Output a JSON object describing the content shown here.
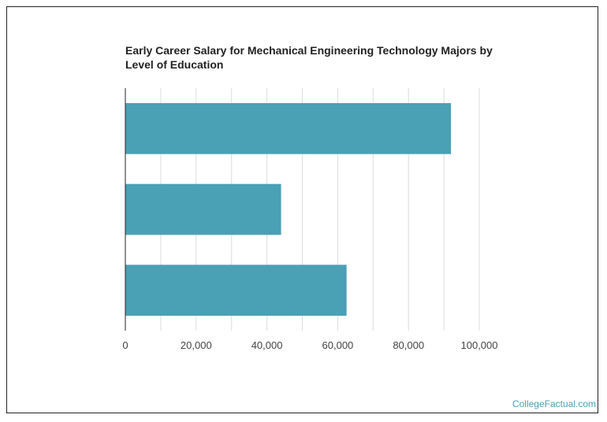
{
  "chart_data": {
    "type": "bar",
    "orientation": "horizontal",
    "title": "Early Career Salary for Mechanical Engineering Technology Majors by Level of Education",
    "categories": [
      "",
      "",
      ""
    ],
    "values": [
      92000,
      44000,
      62500
    ],
    "xlim": [
      0,
      100000
    ],
    "xticks": [
      0,
      20000,
      40000,
      60000,
      80000,
      100000
    ],
    "xtick_labels": [
      "0",
      "20,000",
      "40,000",
      "60,000",
      "80,000",
      "100,000"
    ],
    "grid": true,
    "bar_color": "#4aa0b5"
  },
  "watermark": "CollegeFactual.com"
}
